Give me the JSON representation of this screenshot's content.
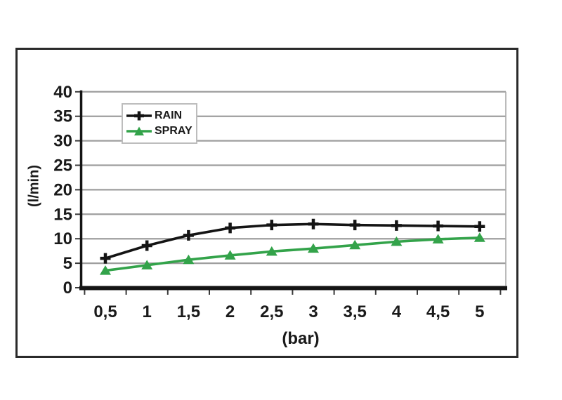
{
  "chart_data": {
    "type": "line",
    "title": "",
    "xlabel": "(bar)",
    "ylabel": "(l/min)",
    "x_categories": [
      "0,5",
      "1",
      "1,5",
      "2",
      "2,5",
      "3",
      "3,5",
      "4",
      "4,5",
      "5"
    ],
    "series": [
      {
        "name": "RAIN",
        "marker": "plus",
        "color": "#141414",
        "values": [
          6,
          8.6,
          10.7,
          12.2,
          12.8,
          13,
          12.8,
          12.7,
          12.6,
          12.5
        ]
      },
      {
        "name": "SPRAY",
        "marker": "triangle",
        "color": "#33a34a",
        "values": [
          3.5,
          4.6,
          5.7,
          6.6,
          7.4,
          8,
          8.7,
          9.4,
          9.9,
          10.2
        ]
      }
    ],
    "y_ticks": [
      0,
      5,
      10,
      15,
      20,
      25,
      30,
      35,
      40
    ],
    "ylim": [
      0,
      40
    ],
    "grid": "horizontal",
    "legend_position": "top-left"
  },
  "style_colors": {
    "grid_color": "#9e9e9e",
    "axis_color": "#141414",
    "plot_right_border": "#aaaaaa",
    "tick_text_color": "#1a1a1a"
  }
}
